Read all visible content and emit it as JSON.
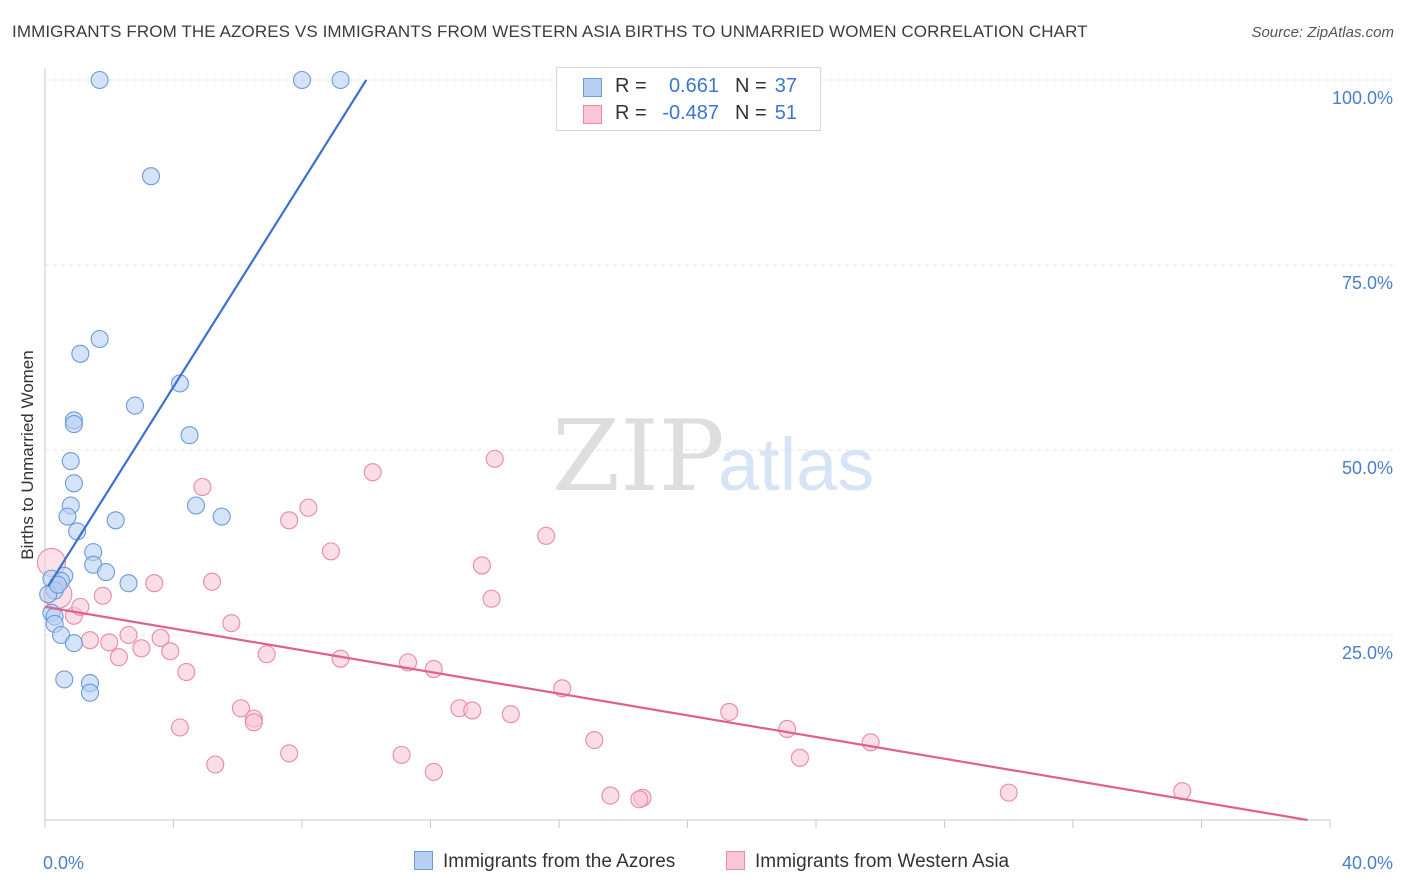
{
  "title": "IMMIGRANTS FROM THE AZORES VS IMMIGRANTS FROM WESTERN ASIA BIRTHS TO UNMARRIED WOMEN CORRELATION CHART",
  "source": "Source: ZipAtlas.com",
  "watermark": {
    "zip": "ZIP",
    "atlas": "atlas"
  },
  "legend": {
    "rows": [
      {
        "r_label": "R =",
        "r_value": "0.661",
        "n_label": "N =",
        "n_value": "37"
      },
      {
        "r_label": "R =",
        "r_value": "-0.487",
        "n_label": "N =",
        "n_value": "51"
      }
    ]
  },
  "colors": {
    "blue_fill": "#b8d1f2",
    "blue_stroke": "#6b9bd8",
    "blue_line": "#3a72cc",
    "pink_fill": "#f8c6d5",
    "pink_stroke": "#e88aa8",
    "pink_line": "#e0628c",
    "grid": "#e4e4e4",
    "tick_text": "#4a7fc9"
  },
  "chart_data": {
    "type": "scatter",
    "title": "IMMIGRANTS FROM THE AZORES VS IMMIGRANTS FROM WESTERN ASIA BIRTHS TO UNMARRIED WOMEN CORRELATION CHART",
    "xlabel": "",
    "ylabel": "Births to Unmarried Women",
    "xlim": [
      0,
      40
    ],
    "ylim": [
      0,
      100
    ],
    "x_tick_labels": [
      "0.0%",
      "40.0%"
    ],
    "y_ticks": [
      25,
      50,
      75,
      100
    ],
    "y_tick_labels": [
      "25.0%",
      "50.0%",
      "75.0%",
      "100.0%"
    ],
    "grid": true,
    "series": [
      {
        "name": "Immigrants from the Azores",
        "color": "blue",
        "r": 0.661,
        "n": 37,
        "trend": {
          "x0": 0.1,
          "y0": 31.6,
          "x1": 10.0,
          "y1": 100.0
        },
        "points": [
          [
            1.7,
            100
          ],
          [
            8.0,
            100
          ],
          [
            9.2,
            100
          ],
          [
            3.3,
            87
          ],
          [
            1.7,
            65
          ],
          [
            1.1,
            63
          ],
          [
            4.2,
            59
          ],
          [
            2.8,
            56
          ],
          [
            0.9,
            54
          ],
          [
            0.9,
            53.5
          ],
          [
            4.5,
            52
          ],
          [
            0.8,
            48.5
          ],
          [
            0.9,
            45.5
          ],
          [
            0.8,
            42.5
          ],
          [
            0.7,
            41
          ],
          [
            4.7,
            42.5
          ],
          [
            5.5,
            41
          ],
          [
            2.2,
            40.5
          ],
          [
            1.0,
            39
          ],
          [
            1.5,
            36.2
          ],
          [
            1.5,
            34.5
          ],
          [
            1.9,
            33.5
          ],
          [
            0.6,
            33
          ],
          [
            2.6,
            32
          ],
          [
            0.2,
            32.6
          ],
          [
            0.5,
            32.3
          ],
          [
            0.3,
            31
          ],
          [
            0.2,
            28
          ],
          [
            0.3,
            27.5
          ],
          [
            0.3,
            26.5
          ],
          [
            0.5,
            25
          ],
          [
            0.9,
            23.9
          ],
          [
            0.6,
            19
          ],
          [
            1.4,
            18.5
          ],
          [
            1.4,
            17.2
          ],
          [
            0.1,
            30.5
          ],
          [
            0.4,
            31.8
          ]
        ]
      },
      {
        "name": "Immigrants from Western Asia",
        "color": "pink",
        "r": -0.487,
        "n": 51,
        "trend": {
          "x0": 0.0,
          "y0": 28.8,
          "x1": 39.3,
          "y1": 0.0
        },
        "points": [
          [
            0.2,
            34.8
          ],
          [
            0.4,
            30.5
          ],
          [
            0.9,
            27.6
          ],
          [
            1.1,
            28.8
          ],
          [
            1.8,
            30.3
          ],
          [
            1.4,
            24.3
          ],
          [
            2.0,
            24
          ],
          [
            2.3,
            22
          ],
          [
            2.6,
            25
          ],
          [
            3.0,
            23.2
          ],
          [
            3.4,
            32
          ],
          [
            3.6,
            24.6
          ],
          [
            3.9,
            22.8
          ],
          [
            4.4,
            20
          ],
          [
            4.9,
            45
          ],
          [
            5.2,
            32.2
          ],
          [
            5.8,
            26.6
          ],
          [
            6.1,
            15.1
          ],
          [
            6.5,
            13.7
          ],
          [
            6.9,
            22.4
          ],
          [
            7.6,
            40.5
          ],
          [
            8.2,
            42.2
          ],
          [
            8.9,
            36.3
          ],
          [
            9.2,
            21.8
          ],
          [
            10.2,
            47
          ],
          [
            11.3,
            21.3
          ],
          [
            12.1,
            20.4
          ],
          [
            12.9,
            15.1
          ],
          [
            13.3,
            14.8
          ],
          [
            14.0,
            48.8
          ],
          [
            13.6,
            34.4
          ],
          [
            13.9,
            29.9
          ],
          [
            14.5,
            14.3
          ],
          [
            15.6,
            38.4
          ],
          [
            16.1,
            17.8
          ],
          [
            17.1,
            10.8
          ],
          [
            17.6,
            3.3
          ],
          [
            18.6,
            3.0
          ],
          [
            18.5,
            2.8
          ],
          [
            21.3,
            14.6
          ],
          [
            23.1,
            12.3
          ],
          [
            23.5,
            8.4
          ],
          [
            25.7,
            10.5
          ],
          [
            30.0,
            3.7
          ],
          [
            35.4,
            3.9
          ],
          [
            5.3,
            7.5
          ],
          [
            7.6,
            9.0
          ],
          [
            4.2,
            12.5
          ],
          [
            11.1,
            8.8
          ],
          [
            12.1,
            6.5
          ],
          [
            6.5,
            13.2
          ]
        ]
      }
    ]
  }
}
